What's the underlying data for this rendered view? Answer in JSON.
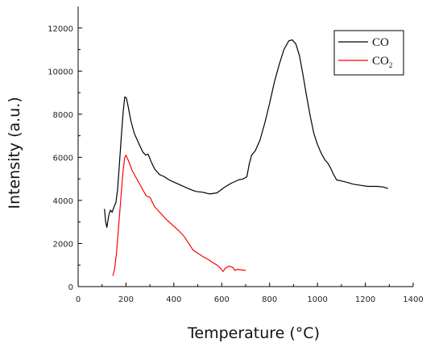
{
  "chart_data": {
    "type": "line",
    "title": "",
    "xlabel": "Temperature (°C)",
    "ylabel": "Intensity (a.u.)",
    "xlim": [
      0,
      1400
    ],
    "ylim": [
      0,
      13000
    ],
    "x_ticks": [
      0,
      200,
      400,
      600,
      800,
      1000,
      1200,
      1400
    ],
    "y_ticks": [
      0,
      2000,
      4000,
      6000,
      8000,
      10000,
      12000
    ],
    "grid": false,
    "legend_position": "top-right",
    "series": [
      {
        "name": "CO",
        "color": "#000000",
        "points": [
          [
            110,
            3600
          ],
          [
            115,
            3000
          ],
          [
            120,
            2750
          ],
          [
            128,
            3300
          ],
          [
            135,
            3550
          ],
          [
            142,
            3450
          ],
          [
            150,
            3700
          ],
          [
            158,
            3900
          ],
          [
            165,
            4500
          ],
          [
            172,
            5600
          ],
          [
            180,
            6900
          ],
          [
            188,
            8100
          ],
          [
            195,
            8800
          ],
          [
            202,
            8750
          ],
          [
            210,
            8300
          ],
          [
            220,
            7700
          ],
          [
            235,
            7100
          ],
          [
            255,
            6600
          ],
          [
            270,
            6250
          ],
          [
            282,
            6100
          ],
          [
            292,
            6150
          ],
          [
            305,
            5800
          ],
          [
            320,
            5450
          ],
          [
            340,
            5200
          ],
          [
            360,
            5100
          ],
          [
            380,
            4950
          ],
          [
            400,
            4850
          ],
          [
            430,
            4700
          ],
          [
            460,
            4550
          ],
          [
            490,
            4420
          ],
          [
            520,
            4380
          ],
          [
            550,
            4300
          ],
          [
            580,
            4350
          ],
          [
            610,
            4600
          ],
          [
            640,
            4800
          ],
          [
            670,
            4950
          ],
          [
            690,
            5000
          ],
          [
            705,
            5100
          ],
          [
            715,
            5700
          ],
          [
            725,
            6100
          ],
          [
            740,
            6300
          ],
          [
            760,
            6800
          ],
          [
            780,
            7600
          ],
          [
            800,
            8500
          ],
          [
            820,
            9500
          ],
          [
            840,
            10300
          ],
          [
            860,
            11000
          ],
          [
            880,
            11400
          ],
          [
            895,
            11450
          ],
          [
            910,
            11250
          ],
          [
            925,
            10700
          ],
          [
            940,
            9800
          ],
          [
            955,
            8800
          ],
          [
            970,
            7900
          ],
          [
            985,
            7100
          ],
          [
            1000,
            6600
          ],
          [
            1015,
            6200
          ],
          [
            1030,
            5900
          ],
          [
            1045,
            5700
          ],
          [
            1055,
            5500
          ],
          [
            1065,
            5250
          ],
          [
            1080,
            4950
          ],
          [
            1100,
            4900
          ],
          [
            1120,
            4850
          ],
          [
            1150,
            4750
          ],
          [
            1180,
            4700
          ],
          [
            1210,
            4650
          ],
          [
            1250,
            4650
          ],
          [
            1275,
            4620
          ],
          [
            1295,
            4550
          ]
        ]
      },
      {
        "name": "CO",
        "name_subscript": "2",
        "color": "#ff0000",
        "points": [
          [
            145,
            500
          ],
          [
            152,
            800
          ],
          [
            160,
            1500
          ],
          [
            168,
            2600
          ],
          [
            175,
            3600
          ],
          [
            182,
            4600
          ],
          [
            188,
            5400
          ],
          [
            195,
            6000
          ],
          [
            200,
            6100
          ],
          [
            208,
            5900
          ],
          [
            215,
            5700
          ],
          [
            225,
            5400
          ],
          [
            240,
            5100
          ],
          [
            255,
            4800
          ],
          [
            270,
            4500
          ],
          [
            285,
            4200
          ],
          [
            300,
            4150
          ],
          [
            320,
            3700
          ],
          [
            345,
            3400
          ],
          [
            370,
            3100
          ],
          [
            395,
            2850
          ],
          [
            420,
            2600
          ],
          [
            445,
            2300
          ],
          [
            465,
            1950
          ],
          [
            480,
            1700
          ],
          [
            500,
            1550
          ],
          [
            520,
            1400
          ],
          [
            545,
            1250
          ],
          [
            565,
            1100
          ],
          [
            580,
            1000
          ],
          [
            595,
            850
          ],
          [
            605,
            700
          ],
          [
            615,
            850
          ],
          [
            630,
            950
          ],
          [
            645,
            900
          ],
          [
            655,
            750
          ],
          [
            665,
            800
          ],
          [
            680,
            780
          ],
          [
            700,
            750
          ]
        ]
      }
    ]
  }
}
